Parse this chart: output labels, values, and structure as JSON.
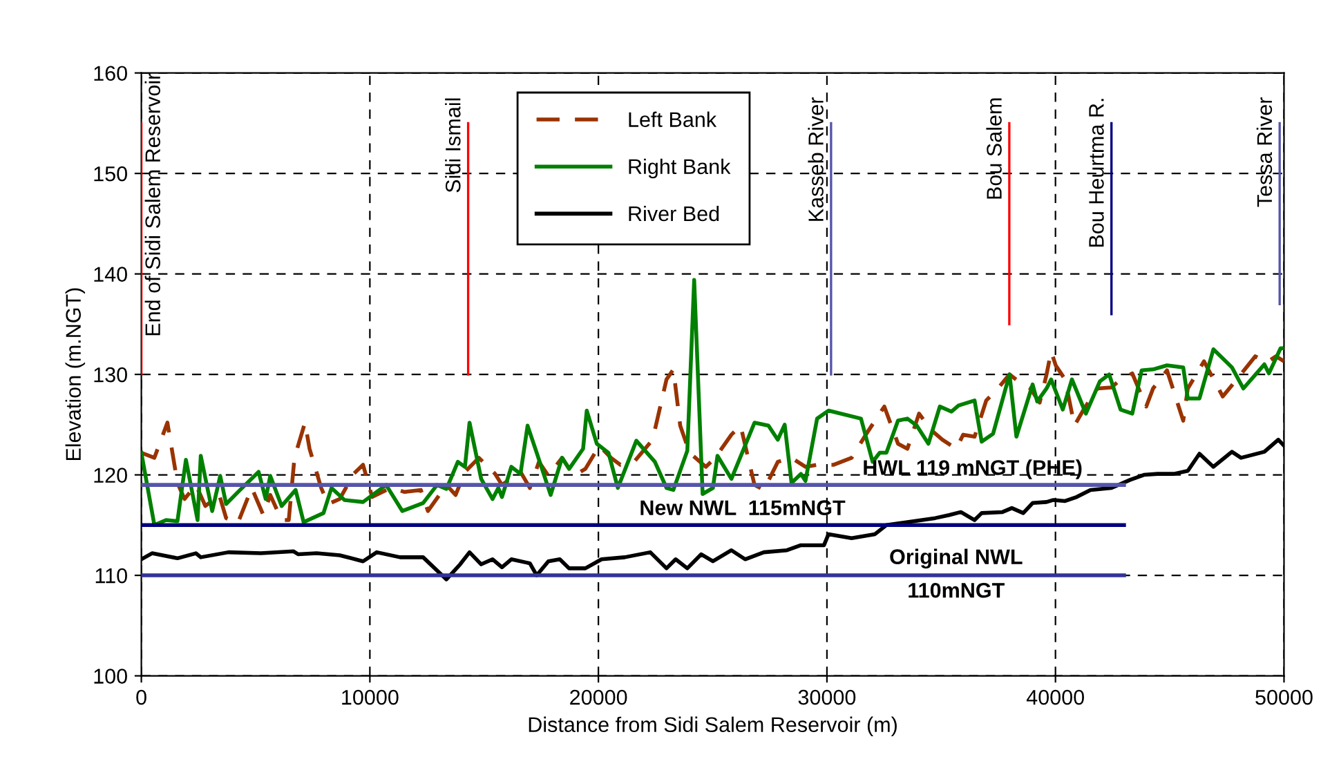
{
  "chart_data": {
    "type": "line",
    "xlabel": "Distance from Sidi Salem Reservoir (m)",
    "ylabel": "Elevation (m.NGT)",
    "xlim": [
      0,
      50000
    ],
    "xticks": [
      0,
      10000,
      20000,
      30000,
      40000,
      50000
    ],
    "ylim": [
      100,
      160
    ],
    "yticks": [
      100,
      110,
      120,
      130,
      140,
      150,
      160
    ],
    "grid": true,
    "legend": "top",
    "marker": "none",
    "series": [
      {
        "name": "Left Bank",
        "color": "#993300",
        "line_style": "dashed",
        "x": [
          0,
          570,
          1140,
          1580,
          1890,
          2390,
          2800,
          3410,
          3710,
          4220,
          4830,
          5340,
          5640,
          6140,
          6450,
          6700,
          7160,
          7360,
          7870,
          8170,
          8680,
          9290,
          9700,
          10100,
          10910,
          11520,
          12230,
          12540,
          13350,
          13750,
          14160,
          14770,
          15480,
          15780,
          16590,
          17000,
          17400,
          17810,
          18410,
          18920,
          19430,
          20040,
          20550,
          20960,
          21560,
          22370,
          22980,
          23280,
          23580,
          23990,
          24700,
          25110,
          25820,
          26220,
          26830,
          27240,
          27850,
          28450,
          29060,
          29570,
          30280,
          31080,
          31700,
          32510,
          33110,
          33520,
          34030,
          34540,
          35050,
          35660,
          35960,
          36460,
          36970,
          37480,
          37990,
          38500,
          38900,
          39310,
          39610,
          39810,
          40010,
          40420,
          40830,
          41230,
          41840,
          42450,
          42850,
          43360,
          43970,
          44270,
          44880,
          45590,
          45790,
          46500,
          47320,
          47930,
          48740,
          49250,
          49650,
          50000
        ],
        "values": [
          122.2,
          121.7,
          125.2,
          119.2,
          117.6,
          119.0,
          116.9,
          118.0,
          115.7,
          115.2,
          118.7,
          116.0,
          118.0,
          115.5,
          115.5,
          121.7,
          125.2,
          122.6,
          118.7,
          117.1,
          117.6,
          120.1,
          121.0,
          117.8,
          118.7,
          118.3,
          118.5,
          116.4,
          119.0,
          118.0,
          120.3,
          121.7,
          120.1,
          119.0,
          120.3,
          118.7,
          121.3,
          119.9,
          121.7,
          119.9,
          120.6,
          122.9,
          121.7,
          121.0,
          121.3,
          123.5,
          129.5,
          130.5,
          124.9,
          122.2,
          120.8,
          121.7,
          124.0,
          124.9,
          119.0,
          118.5,
          121.3,
          121.7,
          120.8,
          121.0,
          121.0,
          121.7,
          124.0,
          126.8,
          123.1,
          122.6,
          126.1,
          124.5,
          123.5,
          122.6,
          124.0,
          123.8,
          127.4,
          128.6,
          130.0,
          129.1,
          128.6,
          127.2,
          130.0,
          132.3,
          130.9,
          129.5,
          124.9,
          126.5,
          128.6,
          128.7,
          129.5,
          130.1,
          126.8,
          128.6,
          130.4,
          125.4,
          128.6,
          131.3,
          127.8,
          129.5,
          131.8,
          131.2,
          131.8,
          131.3
        ]
      },
      {
        "name": "Right Bank",
        "color": "#008000",
        "line_style": "solid",
        "x": [
          0,
          570,
          1080,
          1580,
          1950,
          2460,
          2600,
          3100,
          3450,
          3710,
          4320,
          5130,
          5440,
          5640,
          6140,
          6750,
          7100,
          7970,
          8320,
          8890,
          9700,
          10710,
          11420,
          12330,
          12940,
          13350,
          13850,
          14160,
          14360,
          14870,
          15370,
          15620,
          15780,
          16190,
          16590,
          16900,
          17300,
          17910,
          18410,
          18720,
          19330,
          19490,
          19930,
          20440,
          20850,
          21660,
          22470,
          22980,
          23280,
          23890,
          24190,
          24560,
          25010,
          25210,
          25820,
          26830,
          27440,
          27850,
          28150,
          28450,
          28860,
          29060,
          29570,
          30070,
          31490,
          32000,
          32310,
          32600,
          33110,
          33520,
          33930,
          34440,
          34940,
          35450,
          35760,
          36460,
          36770,
          37270,
          37990,
          38290,
          39000,
          39200,
          39610,
          39810,
          40320,
          40720,
          41330,
          41940,
          42350,
          42850,
          43360,
          43770,
          44270,
          44880,
          45590,
          45790,
          46300,
          46910,
          47720,
          48220,
          49140,
          49340,
          49850,
          50000
        ],
        "values": [
          122.2,
          115.0,
          115.5,
          115.4,
          121.5,
          115.5,
          121.9,
          116.4,
          119.9,
          117.1,
          118.5,
          120.3,
          117.6,
          119.9,
          116.9,
          118.5,
          115.3,
          116.2,
          118.7,
          117.5,
          117.3,
          119.0,
          116.4,
          117.2,
          119.0,
          118.6,
          121.3,
          120.8,
          125.2,
          119.6,
          117.6,
          118.7,
          117.8,
          120.8,
          120.1,
          124.9,
          122.2,
          118.0,
          121.7,
          120.6,
          122.6,
          126.4,
          123.1,
          122.2,
          118.7,
          123.4,
          121.3,
          118.7,
          118.5,
          122.4,
          139.4,
          118.1,
          118.7,
          121.9,
          119.6,
          125.2,
          124.9,
          123.5,
          125.0,
          119.2,
          120.1,
          119.4,
          125.6,
          126.4,
          125.6,
          121.3,
          122.2,
          122.2,
          125.4,
          125.6,
          124.9,
          123.1,
          126.8,
          126.3,
          126.9,
          127.4,
          123.3,
          124.1,
          130.0,
          123.8,
          129.0,
          127.3,
          128.6,
          129.5,
          126.5,
          129.5,
          126.1,
          129.3,
          130.0,
          126.5,
          126.1,
          130.4,
          130.5,
          130.9,
          130.7,
          127.6,
          127.6,
          132.5,
          130.7,
          128.6,
          131.0,
          130.1,
          132.6,
          132.6
        ]
      },
      {
        "name": "River Bed",
        "color": "#000000",
        "line_style": "solid",
        "x": [
          0,
          470,
          1580,
          2390,
          2600,
          3810,
          5230,
          6650,
          6860,
          7670,
          8680,
          9700,
          10300,
          11320,
          12330,
          13350,
          13950,
          14360,
          14870,
          15370,
          15780,
          16190,
          17000,
          17300,
          17810,
          18310,
          18720,
          19430,
          20140,
          21150,
          22270,
          22980,
          23380,
          23890,
          24500,
          25010,
          25820,
          26420,
          27240,
          28250,
          28860,
          29870,
          30070,
          31080,
          32100,
          32600,
          33520,
          34740,
          35350,
          35860,
          36460,
          36770,
          37680,
          38090,
          38590,
          39000,
          39610,
          39910,
          40420,
          40930,
          41530,
          42450,
          43260,
          43870,
          44470,
          45180,
          45790,
          46300,
          46910,
          47720,
          48120,
          49140,
          49750,
          50000
        ],
        "values": [
          111.6,
          112.2,
          111.7,
          112.2,
          111.8,
          112.3,
          112.2,
          112.4,
          112.1,
          112.2,
          112.0,
          111.4,
          112.3,
          111.8,
          111.8,
          109.6,
          111.1,
          112.3,
          111.1,
          111.6,
          110.8,
          111.6,
          111.2,
          110.0,
          111.4,
          111.6,
          110.7,
          110.7,
          111.6,
          111.8,
          112.3,
          110.7,
          111.6,
          110.7,
          112.1,
          111.4,
          112.5,
          111.6,
          112.3,
          112.5,
          113.0,
          113.0,
          114.1,
          113.7,
          114.1,
          115.0,
          115.3,
          115.7,
          116.0,
          116.3,
          115.5,
          116.2,
          116.3,
          116.7,
          116.2,
          117.2,
          117.3,
          117.5,
          117.4,
          117.8,
          118.5,
          118.7,
          119.5,
          120.0,
          120.1,
          120.1,
          120.4,
          122.1,
          120.8,
          122.3,
          121.7,
          122.3,
          123.5,
          122.9
        ]
      },
      {
        "color": "#5555aa",
        "line_style": "solid",
        "x": [
          0,
          43000
        ],
        "values": [
          119,
          119
        ]
      },
      {
        "color": "#000080",
        "line_style": "solid",
        "x": [
          0,
          43000
        ],
        "values": [
          115,
          115
        ]
      },
      {
        "color": "#333399",
        "line_style": "solid",
        "x": [
          0,
          43000
        ],
        "values": [
          110,
          110
        ]
      },
      {
        "name": "End of Sidi Salem Reservoir",
        "color": "#ff0000",
        "line_style": "solid",
        "x": [
          0,
          0
        ],
        "values": [
          130,
          155
        ]
      },
      {
        "name": "Sidi Ismail",
        "color": "#ff0000",
        "line_style": "solid",
        "x": [
          14300,
          14300
        ],
        "values": [
          130,
          155
        ]
      },
      {
        "name": "Kasseb River",
        "color": "#5555aa",
        "line_style": "solid",
        "x": [
          30180,
          30180
        ],
        "values": [
          130,
          155
        ]
      },
      {
        "name": "Bou Salem",
        "color": "#ff0000",
        "line_style": "solid",
        "x": [
          37980,
          37980
        ],
        "values": [
          135,
          155
        ]
      },
      {
        "name": "Bou Heurtma R.",
        "color": "#000080",
        "line_style": "solid",
        "x": [
          42450,
          42450
        ],
        "values": [
          136,
          155
        ]
      },
      {
        "name": "Tessa River",
        "color": "#5555aa",
        "line_style": "solid",
        "x": [
          49810,
          49810
        ],
        "values": [
          137,
          155
        ]
      }
    ],
    "annotations": [
      {
        "text": "HWL 119 mNGT (PHE)",
        "x": 36370,
        "y": 119
      },
      {
        "text": "New NWL  115mNGT",
        "x": 26300,
        "y": 115
      },
      {
        "text": "Original NWL\n110mNGT",
        "x": 35650,
        "y": 110
      }
    ]
  }
}
